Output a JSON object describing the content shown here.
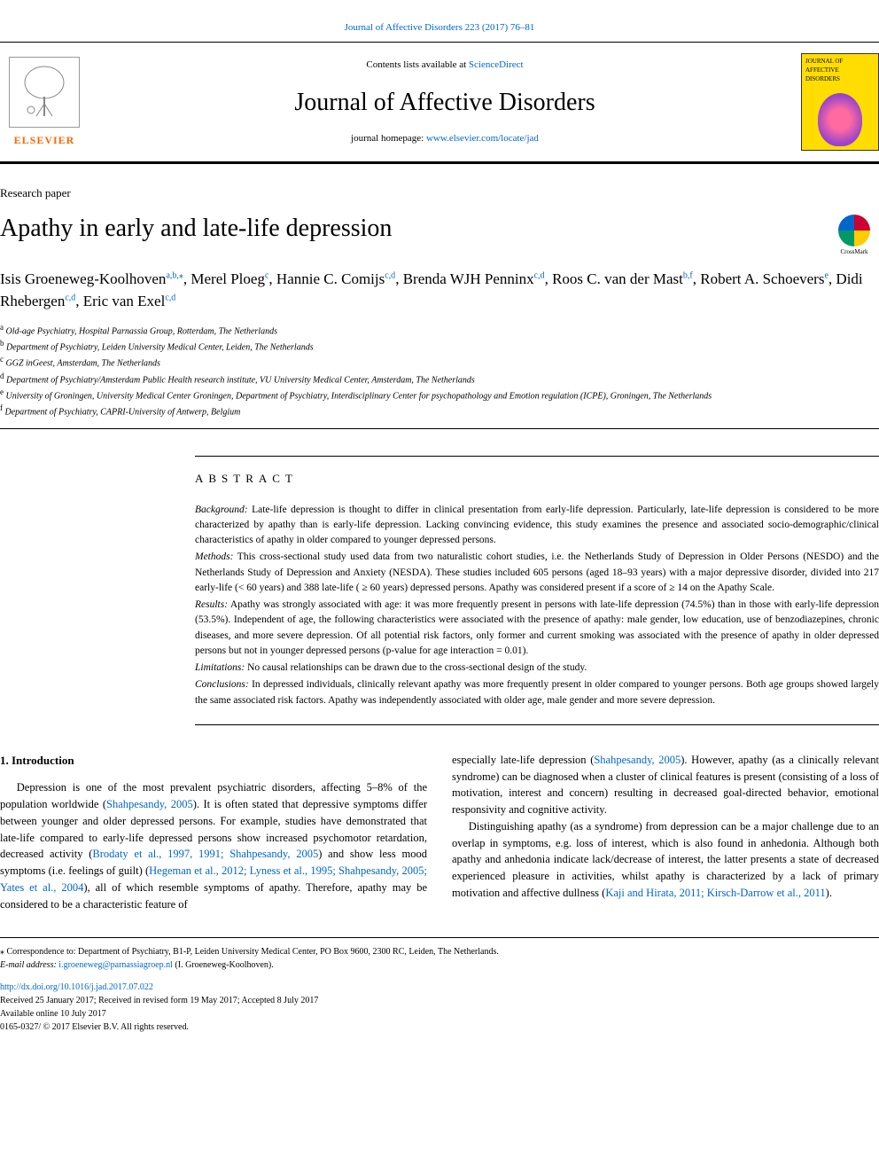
{
  "header": {
    "citation": "Journal of Affective Disorders 223 (2017) 76–81",
    "contents_prefix": "Contents lists available at ",
    "contents_link": "ScienceDirect",
    "journal_title": "Journal of Affective Disorders",
    "homepage_prefix": "journal homepage: ",
    "homepage_link": "www.elsevier.com/locate/jad",
    "elsevier_label": "ELSEVIER",
    "cover_text": "JOURNAL OF AFFECTIVE DISORDERS"
  },
  "article": {
    "type": "Research paper",
    "title": "Apathy in early and late-life depression",
    "crossmark_label": "CrossMark"
  },
  "authors": [
    {
      "name": "Isis Groeneweg-Koolhoven",
      "sup": "a,b,⁎"
    },
    {
      "name": "Merel Ploeg",
      "sup": "c"
    },
    {
      "name": "Hannie C. Comijs",
      "sup": "c,d"
    },
    {
      "name": "Brenda WJH Penninx",
      "sup": "c,d"
    },
    {
      "name": "Roos C. van der Mast",
      "sup": "b,f"
    },
    {
      "name": "Robert A. Schoevers",
      "sup": "e"
    },
    {
      "name": "Didi Rhebergen",
      "sup": "c,d"
    },
    {
      "name": "Eric van Exel",
      "sup": "c,d"
    }
  ],
  "affiliations": [
    {
      "sup": "a",
      "text": "Old-age Psychiatry, Hospital Parnassia Group, Rotterdam, The Netherlands"
    },
    {
      "sup": "b",
      "text": "Department of Psychiatry, Leiden University Medical Center, Leiden, The Netherlands"
    },
    {
      "sup": "c",
      "text": "GGZ inGeest, Amsterdam, The Netherlands"
    },
    {
      "sup": "d",
      "text": "Department of Psychiatry/Amsterdam Public Health research institute, VU University Medical Center, Amsterdam, The Netherlands"
    },
    {
      "sup": "e",
      "text": "University of Groningen, University Medical Center Groningen, Department of Psychiatry, Interdisciplinary Center for psychopathology and Emotion regulation (ICPE), Groningen, The Netherlands"
    },
    {
      "sup": "f",
      "text": "Department of Psychiatry, CAPRI-University of Antwerp, Belgium"
    }
  ],
  "abstract": {
    "heading": "ABSTRACT",
    "sections": [
      {
        "label": "Background:",
        "text": "Late-life depression is thought to differ in clinical presentation from early-life depression. Particularly, late-life depression is considered to be more characterized by apathy than is early-life depression. Lacking convincing evidence, this study examines the presence and associated socio-demographic/clinical characteristics of apathy in older compared to younger depressed persons."
      },
      {
        "label": "Methods:",
        "text": "This cross-sectional study used data from two naturalistic cohort studies, i.e. the Netherlands Study of Depression in Older Persons (NESDO) and the Netherlands Study of Depression and Anxiety (NESDA). These studies included 605 persons (aged 18–93 years) with a major depressive disorder, divided into 217 early-life (< 60 years) and 388 late-life ( ≥ 60 years) depressed persons. Apathy was considered present if a score of ≥ 14 on the Apathy Scale."
      },
      {
        "label": "Results:",
        "text": "Apathy was strongly associated with age: it was more frequently present in persons with late-life depression (74.5%) than in those with early-life depression (53.5%). Independent of age, the following characteristics were associated with the presence of apathy: male gender, low education, use of benzodiazepines, chronic diseases, and more severe depression. Of all potential risk factors, only former and current smoking was associated with the presence of apathy in older depressed persons but not in younger depressed persons (p-value for age interaction = 0.01)."
      },
      {
        "label": "Limitations:",
        "text": "No causal relationships can be drawn due to the cross-sectional design of the study."
      },
      {
        "label": "Conclusions:",
        "text": "In depressed individuals, clinically relevant apathy was more frequently present in older compared to younger persons. Both age groups showed largely the same associated risk factors. Apathy was independently associated with older age, male gender and more severe depression."
      }
    ]
  },
  "body": {
    "intro_heading": "1. Introduction",
    "col1_p1a": "Depression is one of the most prevalent psychiatric disorders, affecting 5–8% of the population worldwide (",
    "col1_p1_link1": "Shahpesandy, 2005",
    "col1_p1b": "). It is often stated that depressive symptoms differ between younger and older depressed persons. For example, studies have demonstrated that late-life compared to early-life depressed persons show increased psychomotor retardation, decreased activity (",
    "col1_p1_link2": "Brodaty et al., 1997, 1991; Shahpesandy, 2005",
    "col1_p1c": ") and show less mood symptoms (i.e. feelings of guilt) (",
    "col1_p1_link3": "Hegeman et al., 2012; Lyness et al., 1995; Shahpesandy, 2005; Yates et al., 2004",
    "col1_p1d": "), all of which resemble symptoms of apathy. Therefore, apathy may be considered to be a characteristic feature of",
    "col2_p1a": "especially late-life depression (",
    "col2_p1_link1": "Shahpesandy, 2005",
    "col2_p1b": "). However, apathy (as a clinically relevant syndrome) can be diagnosed when a cluster of clinical features is present (consisting of a loss of motivation, interest and concern) resulting in decreased goal-directed behavior, emotional responsivity and cognitive activity.",
    "col2_p2a": "Distinguishing apathy (as a syndrome) from depression can be a major challenge due to an overlap in symptoms, e.g. loss of interest, which is also found in anhedonia. Although both apathy and anhedonia indicate lack/decrease of interest, the latter presents a state of decreased experienced pleasure in activities, whilst apathy is characterized by a lack of primary motivation and affective dullness (",
    "col2_p2_link1": "Kaji and Hirata, 2011; Kirsch-Darrow et al., 2011",
    "col2_p2b": ")."
  },
  "footer": {
    "corr_label": "⁎ Correspondence to:",
    "corr_text": "Department of Psychiatry, B1-P, Leiden University Medical Center, PO Box 9600, 2300 RC, Leiden, The Netherlands.",
    "email_label": "E-mail address:",
    "email": "i.groeneweg@parnassiagroep.nl",
    "email_suffix": "(I. Groeneweg-Koolhoven).",
    "doi": "http://dx.doi.org/10.1016/j.jad.2017.07.022",
    "received": "Received 25 January 2017; Received in revised form 19 May 2017; Accepted 8 July 2017",
    "available": "Available online 10 July 2017",
    "copyright": "0165-0327/ © 2017 Elsevier B.V. All rights reserved."
  },
  "colors": {
    "link": "#0066cc",
    "elsevier_orange": "#ff6600",
    "cover_yellow": "#ffdd00"
  }
}
